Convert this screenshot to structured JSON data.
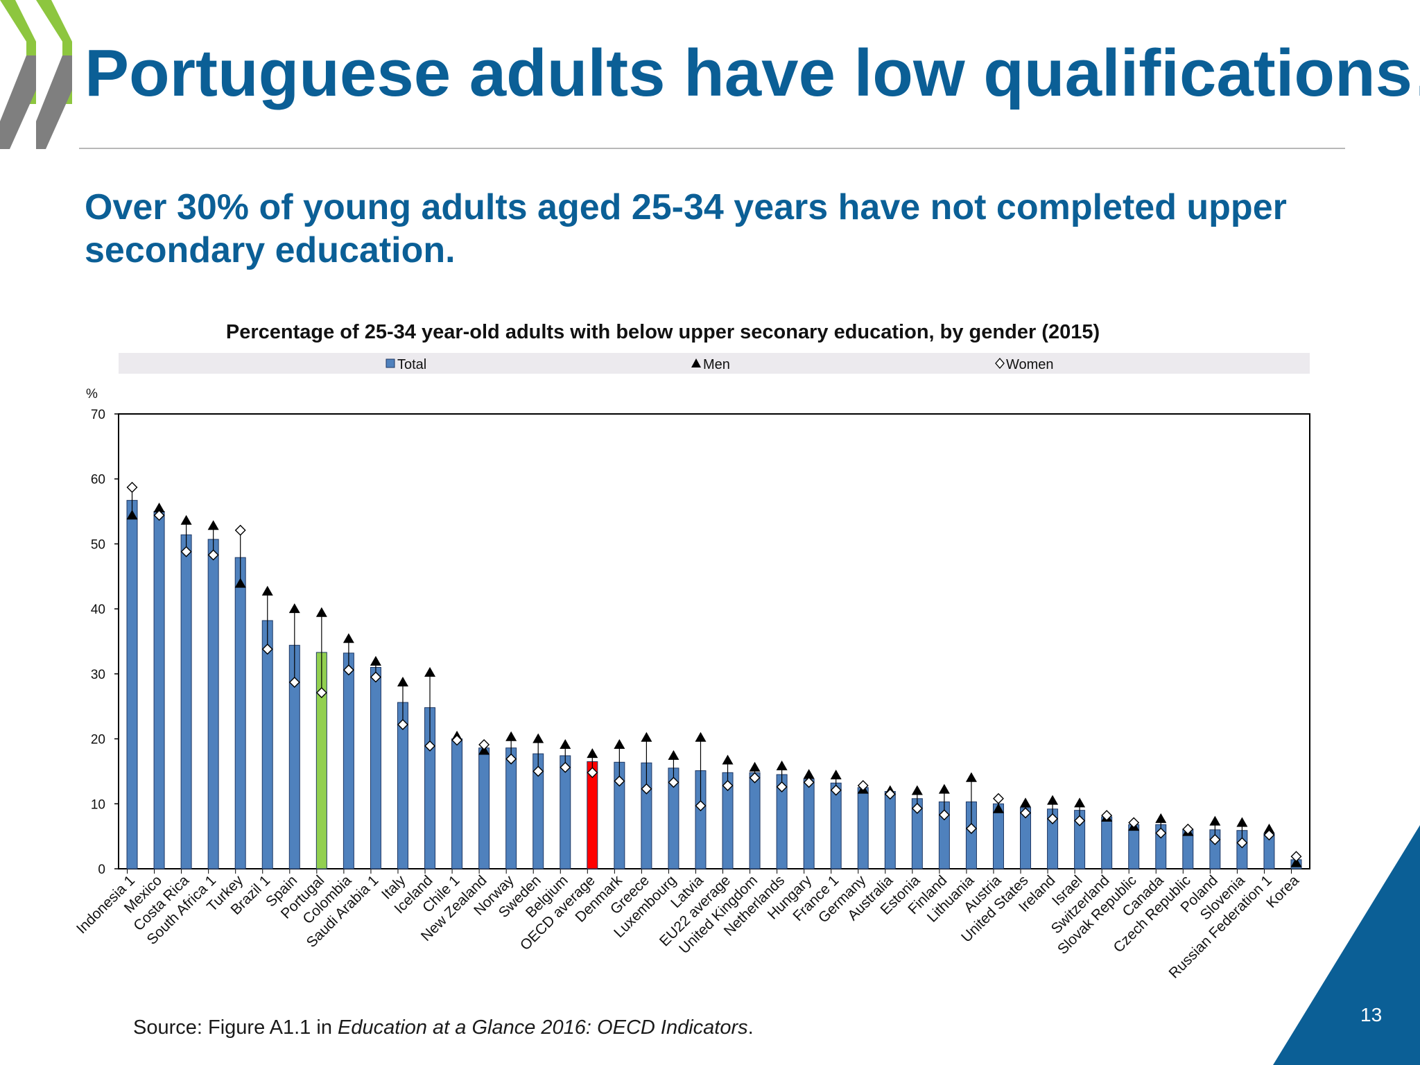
{
  "slide": {
    "title": "Portuguese adults have low qualifications…",
    "subtitle": "Over 30% of young adults aged 25-34 years have not completed upper secondary education.",
    "source_prefix": "Source: Figure A1.1 in ",
    "source_italic": "Education at a Glance 2016: OECD Indicators",
    "source_suffix": ".",
    "page_number": "13",
    "colors": {
      "title": "#0b5f96",
      "logo_green": "#8dc63f",
      "logo_gray": "#7f7f7f",
      "corner": "#0b5f96"
    }
  },
  "chart_data": {
    "type": "bar",
    "title": "Percentage of 25-34 year-old adults with below upper seconary education, by gender (2015)",
    "ylabel": "%",
    "ylim": [
      0,
      70
    ],
    "yticks": [
      0,
      10,
      20,
      30,
      40,
      50,
      60,
      70
    ],
    "grid": false,
    "legend_placement": "top",
    "legend": {
      "total": "Total",
      "men": "Men",
      "women": "Women"
    },
    "colors": {
      "total": "#4f81bd",
      "portugal": "#92d050",
      "oecd": "#ff0000"
    },
    "categories": [
      "Indonesia 1",
      "Mexico",
      "Costa Rica",
      "South Africa 1",
      "Turkey",
      "Brazil 1",
      "Spain",
      "Portugal",
      "Colombia",
      "Saudi Arabia 1",
      "Italy",
      "Iceland",
      "Chile 1",
      "New Zealand",
      "Norway",
      "Sweden",
      "Belgium",
      "OECD average",
      "Denmark",
      "Greece",
      "Luxembourg",
      "Latvia",
      "EU22 average",
      "United Kingdom",
      "Netherlands",
      "Hungary",
      "France 1",
      "Germany",
      "Australia",
      "Estonia",
      "Finland",
      "Lithuania",
      "Austria",
      "United States",
      "Ireland",
      "Israel",
      "Switzerland",
      "Slovak Republic",
      "Canada",
      "Czech Republic",
      "Poland",
      "Slovenia",
      "Russian Federation 1",
      "Korea"
    ],
    "highlight": {
      "Portugal": "portugal",
      "OECD average": "oecd"
    },
    "series": [
      {
        "name": "Total",
        "values": [
          56.7,
          55,
          51.4,
          50.7,
          47.9,
          38.2,
          34.4,
          33.3,
          33.2,
          31,
          25.6,
          24.8,
          20,
          18.6,
          18.6,
          17.7,
          17.4,
          16.5,
          16.4,
          16.3,
          15.5,
          15.1,
          14.8,
          14.8,
          14.5,
          13.8,
          13.2,
          12.5,
          11.9,
          10.8,
          10.3,
          10.3,
          10,
          9.4,
          9.2,
          9,
          8,
          6.8,
          6.8,
          6.1,
          6,
          5.9,
          5.4,
          1.4
        ]
      },
      {
        "name": "Men",
        "values": [
          54.4,
          55.5,
          53.6,
          52.8,
          43.9,
          42.7,
          40,
          39.4,
          35.4,
          31.9,
          28.7,
          30.2,
          20.4,
          18.2,
          20.3,
          20,
          19.1,
          17.7,
          19.1,
          20.2,
          17.4,
          20.2,
          16.7,
          15.6,
          15.8,
          14.5,
          14.4,
          12.2,
          12,
          12,
          12.2,
          14,
          9.2,
          10.1,
          10.5,
          10.1,
          7.9,
          6.5,
          7.7,
          5.7,
          7.3,
          7.1,
          6.1,
          0.9
        ]
      },
      {
        "name": "Women",
        "values": [
          58.7,
          54.4,
          48.8,
          48.3,
          52.1,
          33.8,
          28.7,
          27.1,
          30.6,
          29.5,
          22.2,
          18.9,
          19.8,
          19.1,
          16.9,
          15,
          15.6,
          14.8,
          13.5,
          12.3,
          13.3,
          9.7,
          12.8,
          14,
          12.6,
          13.3,
          12.1,
          12.8,
          11.5,
          9.3,
          8.3,
          6.2,
          10.8,
          8.6,
          7.7,
          7.4,
          8.2,
          7.1,
          5.5,
          6.1,
          4.5,
          4,
          5.2,
          1.9
        ]
      }
    ]
  }
}
